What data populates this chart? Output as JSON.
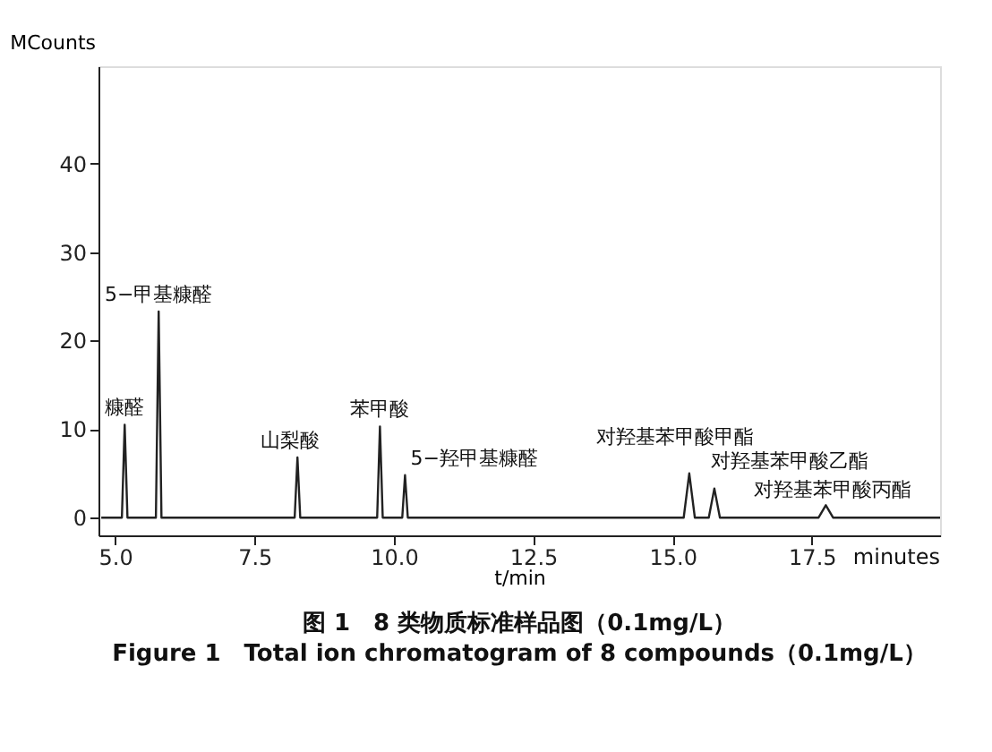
{
  "chart_data": {
    "type": "line",
    "title": "图 1　8 类物质标准样品图（0.1mg/L）",
    "subtitle": "Figure 1　Total ion chromatogram of 8 compounds（0.1mg/L）",
    "xlabel": "t/min",
    "ylabel": "MCounts",
    "x": [
      4.75,
      5.12,
      5.17,
      5.22,
      5.73,
      5.78,
      5.83,
      8.22,
      8.27,
      8.32,
      9.7,
      9.75,
      9.8,
      10.15,
      10.2,
      10.25,
      15.2,
      15.3,
      15.4,
      15.65,
      15.75,
      15.85,
      17.62,
      17.75,
      17.88,
      19.8
    ],
    "series": [
      {
        "color": "#222222",
        "values": [
          0,
          0,
          10.5,
          0,
          0,
          23.3,
          0,
          0,
          6.8,
          0,
          0,
          10.3,
          0,
          0,
          4.8,
          0,
          0,
          5.0,
          0,
          0,
          3.3,
          0,
          0,
          1.4,
          0,
          0
        ]
      }
    ],
    "xlim": [
      4.7,
      19.8
    ],
    "ylim": [
      -2,
      51
    ],
    "xticks": [
      {
        "value": 5,
        "label": "5.0"
      },
      {
        "value": 7.5,
        "label": "7.5"
      },
      {
        "value": 10,
        "label": "10.0"
      },
      {
        "value": 12.5,
        "label": "12.5"
      },
      {
        "value": 15,
        "label": "15.0"
      },
      {
        "value": 17.5,
        "label": "17.5"
      }
    ],
    "yticks": [
      0,
      10,
      20,
      30,
      40
    ],
    "annotations": [
      {
        "text": "糠醛",
        "x": 5.17,
        "y": 10.5
      },
      {
        "text": "5−甲基糠醛",
        "x": 5.78,
        "y": 23.3
      },
      {
        "text": "山梨酸",
        "x": 8.27,
        "y": 6.8
      },
      {
        "text": "苯甲酸",
        "x": 9.75,
        "y": 10.3
      },
      {
        "text": "5−羟甲基糠醛",
        "x": 10.2,
        "y": 4.8
      },
      {
        "text": "对羟基苯甲酸甲酯",
        "x": 15.3,
        "y": 5.0
      },
      {
        "text": "对羟基苯甲酸乙酯",
        "x": 15.75,
        "y": 3.3
      },
      {
        "text": "对羟基苯甲酸丙酯",
        "x": 17.75,
        "y": 1.4
      },
      "minutes"
    ],
    "grid": false,
    "marker": "none",
    "line_style": "solid"
  }
}
